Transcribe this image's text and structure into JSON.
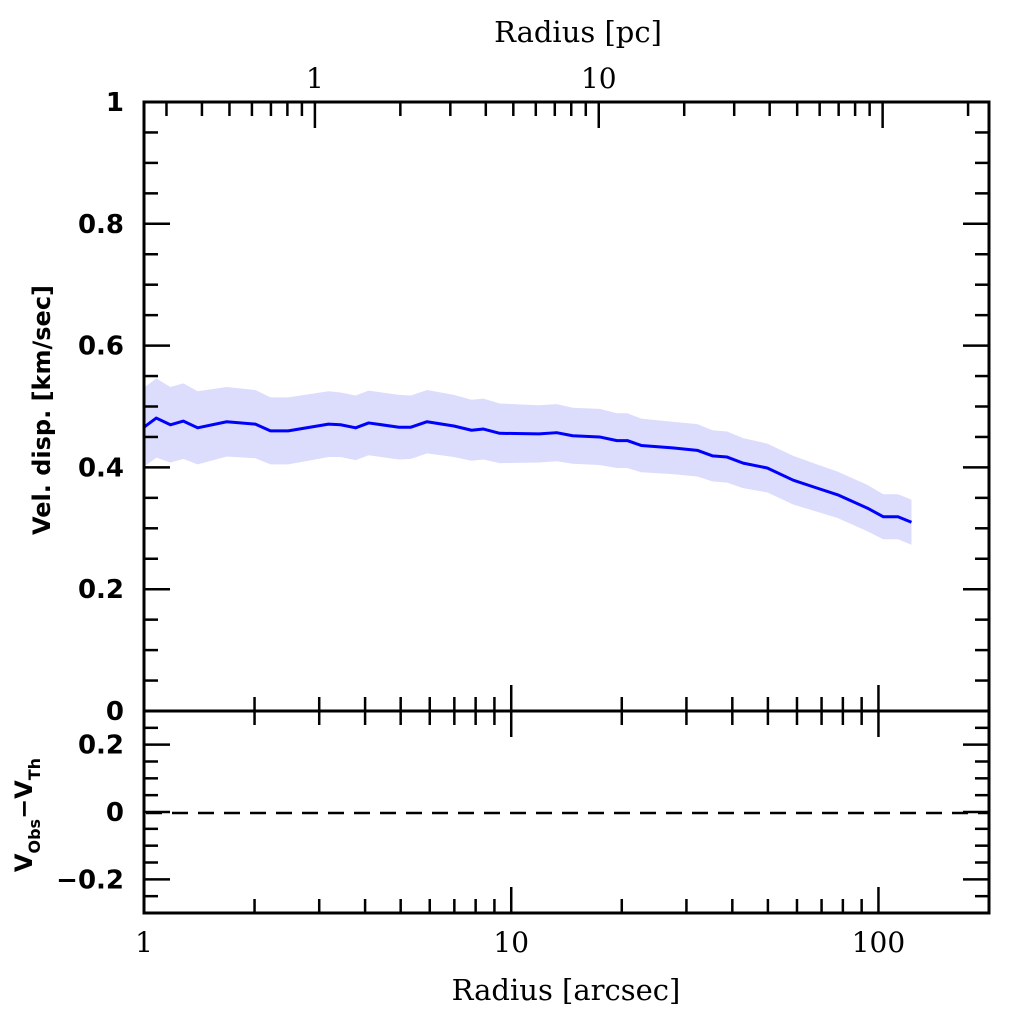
{
  "chart_data": [
    {
      "type": "line",
      "panel": "main",
      "xlabel": "Radius [arcsec]",
      "top_xlabel": "Radius [pc]",
      "ylabel": "Vel. disp. [km/sec]",
      "xscale": "log",
      "xlim": [
        1,
        200
      ],
      "ylim": [
        0,
        1
      ],
      "yticks": [
        "0",
        "0.2",
        "0.4",
        "0.6",
        "0.8",
        "1"
      ],
      "top_xscale": "log",
      "top_xlim": [
        0.25,
        237
      ],
      "top_xticks": [
        "1",
        "10"
      ],
      "line_color": "#0000ff",
      "band_color": "#dcdcfc",
      "series": [
        {
          "name": "velocity dispersion",
          "x": [
            1.0,
            1.08,
            1.18,
            1.28,
            1.4,
            1.68,
            2.01,
            2.21,
            2.47,
            3.18,
            3.43,
            3.77,
            4.09,
            4.95,
            5.33,
            5.9,
            6.98,
            7.8,
            8.4,
            9.3,
            11.9,
            13.3,
            14.7,
            17.4,
            19.4,
            20.7,
            22.6,
            27.5,
            32.1,
            35.3,
            38.7,
            42.8,
            49.8,
            58.6,
            66.5,
            77.4,
            93.4,
            103,
            113,
            123
          ],
          "y": [
            0.466,
            0.481,
            0.47,
            0.476,
            0.465,
            0.475,
            0.471,
            0.46,
            0.46,
            0.471,
            0.47,
            0.465,
            0.473,
            0.466,
            0.466,
            0.475,
            0.468,
            0.461,
            0.463,
            0.456,
            0.455,
            0.457,
            0.452,
            0.45,
            0.444,
            0.444,
            0.436,
            0.432,
            0.428,
            0.419,
            0.417,
            0.407,
            0.399,
            0.379,
            0.368,
            0.355,
            0.333,
            0.319,
            0.319,
            0.31
          ],
          "err": [
            0.065,
            0.065,
            0.062,
            0.062,
            0.06,
            0.057,
            0.056,
            0.055,
            0.055,
            0.054,
            0.053,
            0.053,
            0.053,
            0.053,
            0.052,
            0.052,
            0.051,
            0.05,
            0.05,
            0.049,
            0.047,
            0.047,
            0.046,
            0.046,
            0.045,
            0.045,
            0.044,
            0.043,
            0.043,
            0.042,
            0.042,
            0.041,
            0.04,
            0.04,
            0.039,
            0.038,
            0.038,
            0.037,
            0.037,
            0.037
          ]
        }
      ]
    },
    {
      "type": "line",
      "panel": "residual",
      "xlabel": "Radius [arcsec]",
      "ylabel_main": "V",
      "ylabel_sub1": "Obs",
      "ylabel_minus": "−V",
      "ylabel_sub2": "Th",
      "xscale": "log",
      "xlim": [
        1,
        200
      ],
      "xticks": [
        "1",
        "10",
        "100"
      ],
      "ylim": [
        -0.3,
        0.3
      ],
      "yticks": [
        "-0.2",
        "0",
        "0.2"
      ],
      "yticks_text": [
        "−0.2",
        "0",
        "0.2"
      ],
      "reference_line": {
        "y": 0,
        "style": "dashed"
      }
    }
  ]
}
